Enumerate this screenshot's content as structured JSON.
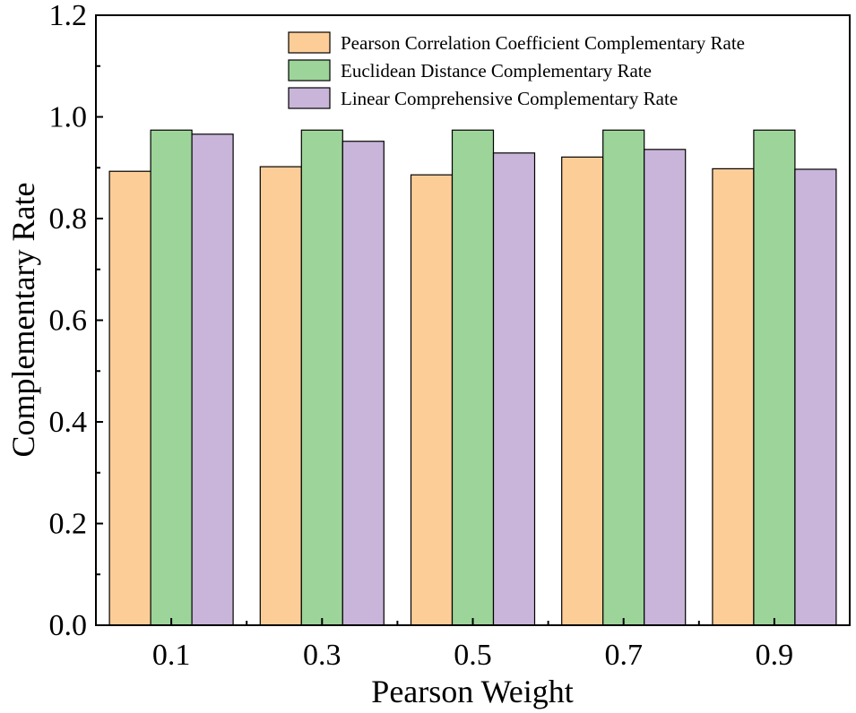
{
  "chart_data": {
    "type": "bar",
    "title": "",
    "xlabel": "Pearson Weight",
    "ylabel": "Complementary Rate",
    "ylim": [
      0.0,
      1.2
    ],
    "yticks": [
      "0.0",
      "0.2",
      "0.4",
      "0.6",
      "0.8",
      "1.0",
      "1.2"
    ],
    "categories": [
      "0.1",
      "0.3",
      "0.5",
      "0.7",
      "0.9"
    ],
    "series": [
      {
        "name": "Pearson Correlation Coefficient Complementary Rate",
        "color": "#fdcd98",
        "values": [
          0.893,
          0.902,
          0.886,
          0.921,
          0.898
        ]
      },
      {
        "name": "Euclidean Distance Complementary Rate",
        "color": "#9dd49a",
        "values": [
          0.974,
          0.974,
          0.974,
          0.974,
          0.974
        ]
      },
      {
        "name": "Linear Comprehensive Complementary Rate",
        "color": "#c8b5d9",
        "values": [
          0.966,
          0.952,
          0.929,
          0.936,
          0.897
        ]
      }
    ],
    "legend_position": "top-right",
    "grid": false
  }
}
